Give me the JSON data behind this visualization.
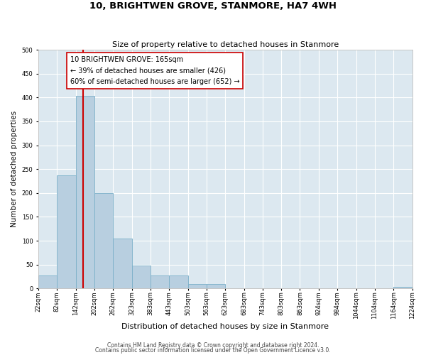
{
  "title": "10, BRIGHTWEN GROVE, STANMORE, HA7 4WH",
  "subtitle": "Size of property relative to detached houses in Stanmore",
  "xlabel": "Distribution of detached houses by size in Stanmore",
  "ylabel": "Number of detached properties",
  "bin_edges": [
    22,
    82,
    142,
    202,
    262,
    323,
    383,
    443,
    503,
    563,
    623,
    683,
    743,
    803,
    863,
    924,
    984,
    1044,
    1104,
    1164,
    1224
  ],
  "bar_heights": [
    27,
    237,
    403,
    200,
    105,
    48,
    27,
    27,
    10,
    10,
    0,
    0,
    0,
    0,
    0,
    0,
    0,
    0,
    0,
    3
  ],
  "bar_color": "#b8cfe0",
  "bar_edge_color": "#7aafc8",
  "property_line_x": 165,
  "property_line_color": "#cc0000",
  "annotation_text_line1": "10 BRIGHTWEN GROVE: 165sqm",
  "annotation_text_line2": "← 39% of detached houses are smaller (426)",
  "annotation_text_line3": "60% of semi-detached houses are larger (652) →",
  "annotation_fontsize": 7.0,
  "box_edge_color": "#cc0000",
  "ylim": [
    0,
    500
  ],
  "yticks": [
    0,
    50,
    100,
    150,
    200,
    250,
    300,
    350,
    400,
    450,
    500
  ],
  "footnote1": "Contains HM Land Registry data © Crown copyright and database right 2024.",
  "footnote2": "Contains public sector information licensed under the Open Government Licence v3.0.",
  "title_fontsize": 9.5,
  "subtitle_fontsize": 8.0,
  "xlabel_fontsize": 8.0,
  "ylabel_fontsize": 7.5,
  "tick_label_fontsize": 6.0,
  "footnote_fontsize": 5.5,
  "bg_color": "#dce8f0"
}
